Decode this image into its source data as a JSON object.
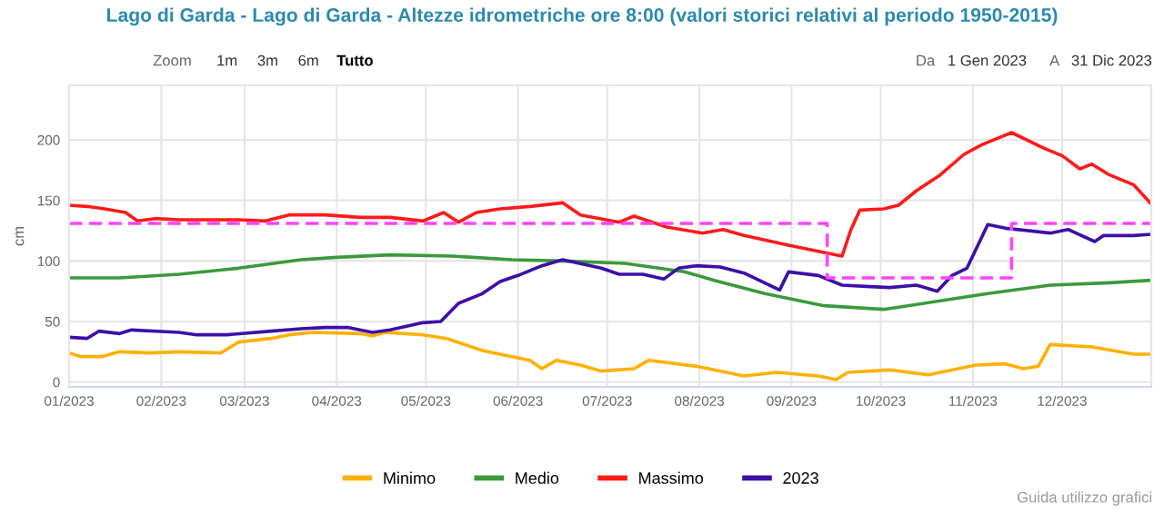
{
  "chart_data": {
    "type": "line",
    "title": "Lago di Garda - Lago di Garda - Altezze idrometriche ore 8:00 (valori storici relativi al periodo 1950-2015)",
    "ylabel": "cm",
    "xlim": [
      "2023-01-01",
      "2023-12-31"
    ],
    "xticks": [
      {
        "value": "2023-01-01",
        "label": "01/2023"
      },
      {
        "value": "2023-02-01",
        "label": "02/2023"
      },
      {
        "value": "2023-03-01",
        "label": "03/2023"
      },
      {
        "value": "2023-04-01",
        "label": "04/2023"
      },
      {
        "value": "2023-05-01",
        "label": "05/2023"
      },
      {
        "value": "2023-06-01",
        "label": "06/2023"
      },
      {
        "value": "2023-07-01",
        "label": "07/2023"
      },
      {
        "value": "2023-08-01",
        "label": "08/2023"
      },
      {
        "value": "2023-09-01",
        "label": "09/2023"
      },
      {
        "value": "2023-10-01",
        "label": "10/2023"
      },
      {
        "value": "2023-11-01",
        "label": "11/2023"
      },
      {
        "value": "2023-12-01",
        "label": "12/2023"
      }
    ],
    "ylim": [
      -4,
      245
    ],
    "yticks": [
      0,
      50,
      100,
      150,
      200
    ],
    "grid": true,
    "legend": "bottom",
    "marker": "none",
    "annotations": [
      "Zoom",
      "1m",
      "3m",
      "6m",
      "Tutto",
      "Da",
      "1 Gen 2023",
      "A",
      "31 Dic 2023",
      "Guida utilizzo grafici"
    ],
    "series": [
      {
        "name": "Minimo",
        "color": "#ffb000",
        "x": [
          "2023-01-01",
          "2023-01-05",
          "2023-01-12",
          "2023-01-18",
          "2023-01-28",
          "2023-02-07",
          "2023-02-21",
          "2023-02-27",
          "2023-03-10",
          "2023-03-16",
          "2023-03-24",
          "2023-04-09",
          "2023-04-13",
          "2023-04-17",
          "2023-04-30",
          "2023-05-08",
          "2023-05-20",
          "2023-05-30",
          "2023-06-05",
          "2023-06-09",
          "2023-06-14",
          "2023-06-22",
          "2023-06-29",
          "2023-07-10",
          "2023-07-15",
          "2023-07-31",
          "2023-08-16",
          "2023-08-27",
          "2023-09-10",
          "2023-09-16",
          "2023-09-20",
          "2023-10-04",
          "2023-10-17",
          "2023-11-02",
          "2023-11-12",
          "2023-11-18",
          "2023-11-23",
          "2023-11-27",
          "2023-12-11",
          "2023-12-25",
          "2023-12-31"
        ],
        "values": [
          24,
          21,
          21,
          25,
          24,
          25,
          24,
          33,
          36,
          39,
          41,
          40,
          38,
          41,
          39,
          36,
          26,
          21,
          18,
          11,
          18,
          14,
          9,
          11,
          18,
          13,
          5,
          8,
          5,
          2,
          8,
          10,
          6,
          14,
          15,
          11,
          13,
          31,
          29,
          23,
          23
        ]
      },
      {
        "name": "Medio",
        "color": "#3a9a3a",
        "x": [
          "2023-01-01",
          "2023-01-18",
          "2023-02-07",
          "2023-02-27",
          "2023-03-20",
          "2023-04-01",
          "2023-04-19",
          "2023-05-10",
          "2023-05-30",
          "2023-06-16",
          "2023-07-07",
          "2023-07-27",
          "2023-08-06",
          "2023-08-23",
          "2023-09-12",
          "2023-10-02",
          "2023-10-21",
          "2023-11-06",
          "2023-11-27",
          "2023-12-17",
          "2023-12-31"
        ],
        "values": [
          86,
          86,
          89,
          94,
          101,
          103,
          105,
          104,
          101,
          100,
          98,
          91,
          84,
          73,
          63,
          60,
          67,
          73,
          80,
          82,
          84
        ]
      },
      {
        "name": "Massimo",
        "color": "#ff1a1a",
        "x": [
          "2023-01-01",
          "2023-01-07",
          "2023-01-13",
          "2023-01-20",
          "2023-01-24",
          "2023-01-30",
          "2023-02-07",
          "2023-02-17",
          "2023-02-27",
          "2023-03-08",
          "2023-03-16",
          "2023-03-28",
          "2023-04-09",
          "2023-04-19",
          "2023-04-30",
          "2023-05-07",
          "2023-05-12",
          "2023-05-18",
          "2023-05-26",
          "2023-06-05",
          "2023-06-16",
          "2023-06-22",
          "2023-07-05",
          "2023-07-10",
          "2023-07-21",
          "2023-08-02",
          "2023-08-09",
          "2023-08-16",
          "2023-08-31",
          "2023-09-10",
          "2023-09-18",
          "2023-09-21",
          "2023-09-24",
          "2023-10-02",
          "2023-10-07",
          "2023-10-13",
          "2023-10-21",
          "2023-10-29",
          "2023-11-04",
          "2023-11-10",
          "2023-11-14",
          "2023-11-25",
          "2023-12-01",
          "2023-12-07",
          "2023-12-11",
          "2023-12-17",
          "2023-12-25",
          "2023-12-31"
        ],
        "values": [
          146,
          145,
          143,
          140,
          133,
          135,
          134,
          134,
          134,
          133,
          138,
          138,
          136,
          136,
          133,
          140,
          132,
          140,
          143,
          145,
          148,
          138,
          132,
          137,
          128,
          123,
          126,
          121,
          113,
          108,
          104,
          126,
          142,
          143,
          146,
          158,
          171,
          188,
          196,
          202,
          206,
          193,
          187,
          176,
          180,
          171,
          163,
          147
        ]
      },
      {
        "name": "2023",
        "color": "#3d0fa8",
        "x": [
          "2023-01-01",
          "2023-01-07",
          "2023-01-11",
          "2023-01-18",
          "2023-01-22",
          "2023-02-07",
          "2023-02-13",
          "2023-02-23",
          "2023-03-10",
          "2023-03-20",
          "2023-03-28",
          "2023-04-05",
          "2023-04-13",
          "2023-04-19",
          "2023-04-30",
          "2023-05-06",
          "2023-05-12",
          "2023-05-20",
          "2023-05-26",
          "2023-06-01",
          "2023-06-09",
          "2023-06-16",
          "2023-06-29",
          "2023-07-05",
          "2023-07-13",
          "2023-07-20",
          "2023-07-25",
          "2023-07-31",
          "2023-08-08",
          "2023-08-16",
          "2023-08-28",
          "2023-08-31",
          "2023-09-10",
          "2023-09-18",
          "2023-09-26",
          "2023-10-04",
          "2023-10-13",
          "2023-10-20",
          "2023-10-25",
          "2023-10-30",
          "2023-11-06",
          "2023-11-12",
          "2023-11-27",
          "2023-12-03",
          "2023-12-12",
          "2023-12-15",
          "2023-12-25",
          "2023-12-31"
        ],
        "values": [
          37,
          36,
          42,
          40,
          43,
          41,
          39,
          39,
          42,
          44,
          45,
          45,
          41,
          43,
          49,
          50,
          65,
          73,
          83,
          88,
          96,
          101,
          94,
          89,
          89,
          85,
          94,
          96,
          95,
          90,
          76,
          91,
          88,
          80,
          79,
          78,
          80,
          75,
          88,
          94,
          130,
          127,
          123,
          126,
          116,
          121,
          121,
          122
        ]
      },
      {
        "color": "#ff44ff",
        "line_style": "dashed",
        "x": [
          "2023-01-01",
          "2023-09-13",
          "2023-09-13",
          "2023-11-14",
          "2023-11-14",
          "2023-12-31"
        ],
        "values": [
          131,
          131,
          86,
          86,
          131,
          131
        ]
      }
    ]
  }
}
